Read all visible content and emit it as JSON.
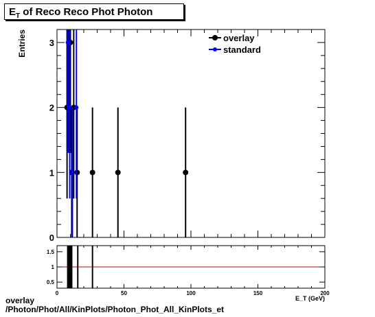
{
  "title": {
    "main": "E",
    "sub": "T",
    "rest": " of Reco Reco Phot Photon"
  },
  "chart_data": [
    {
      "type": "scatter",
      "ylabel": "Entries",
      "xlabel": "E_T (GeV)",
      "xlim": [
        0,
        200
      ],
      "ylim": [
        0,
        3.2
      ],
      "yticks": [
        0,
        1,
        2,
        3
      ],
      "legend_position": "top-right",
      "series": [
        {
          "name": "overlay",
          "color": "#000000",
          "points": [
            {
              "x": 7.5,
              "y": 2,
              "err": 1.4
            },
            {
              "x": 9,
              "y": 3,
              "err": 1.7
            },
            {
              "x": 10,
              "y": 3,
              "err": 1.7
            },
            {
              "x": 11,
              "y": 1,
              "err": 1
            },
            {
              "x": 12.5,
              "y": 2,
              "err": 1.4
            },
            {
              "x": 15,
              "y": 1,
              "err": 1
            },
            {
              "x": 26.5,
              "y": 1,
              "err": 1
            },
            {
              "x": 45.5,
              "y": 1,
              "err": 1
            },
            {
              "x": 96,
              "y": 1,
              "err": 1
            }
          ]
        },
        {
          "name": "standard",
          "color": "#0000ff",
          "points": [
            {
              "x": 8,
              "y": 3,
              "err": 1.7
            },
            {
              "x": 9.5,
              "y": 2,
              "err": 1.4
            },
            {
              "x": 11.5,
              "y": 1,
              "err": 1
            },
            {
              "x": 14.5,
              "y": 2,
              "err": 1.4
            }
          ]
        }
      ]
    },
    {
      "type": "line",
      "xlim": [
        0,
        200
      ],
      "ylim": [
        0.3,
        1.7
      ],
      "yticks": [
        0.5,
        1,
        1.5
      ],
      "xticks": [
        0,
        50,
        100,
        150,
        200
      ],
      "reference_line": {
        "y": 1,
        "color": "#cc0000"
      },
      "ratio_bars": [
        {
          "x": 8,
          "low": 0.3,
          "high": 1.7
        },
        {
          "x": 9,
          "low": 0.3,
          "high": 1.7
        },
        {
          "x": 10,
          "low": 0.3,
          "high": 1.7
        },
        {
          "x": 11,
          "low": 0.3,
          "high": 1.7
        },
        {
          "x": 15.5,
          "low": 0.3,
          "high": 1.7
        },
        {
          "x": 26.5,
          "low": 0.3,
          "high": 1.7
        }
      ]
    }
  ],
  "footer": {
    "line1": "overlay",
    "line2": "/Photon/Phot/All/KinPlots/Photon_Phot_All_KinPlots_et"
  }
}
